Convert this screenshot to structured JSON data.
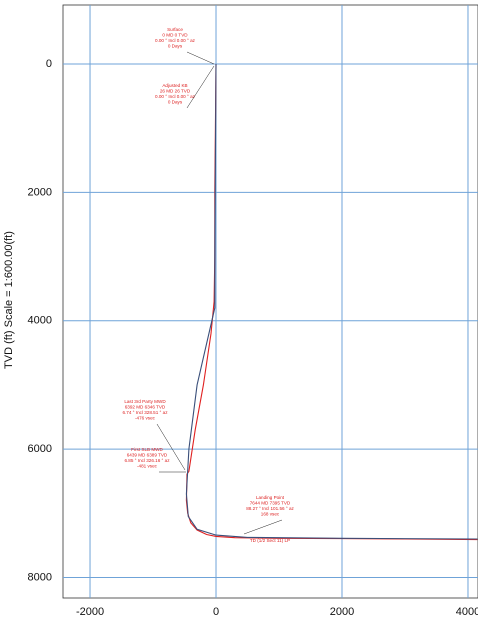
{
  "chart_data": {
    "type": "line",
    "y_label": "TVD (ft) Scale = 1:600.00(ft)",
    "xlim": [
      -2429,
      4159
    ],
    "ylim": [
      8320,
      -920
    ],
    "xticks": [
      -2000,
      0,
      2000,
      4000
    ],
    "yticks": [
      0,
      2000,
      4000,
      6000,
      8000
    ],
    "grid": true,
    "series": [
      {
        "color": "#e02020",
        "x": [
          0,
          0,
          -10,
          -20,
          -20,
          -30,
          -80,
          -200,
          -330,
          -430,
          -460,
          -470,
          -450,
          -400,
          -300,
          -150,
          0,
          300,
          600,
          1000,
          2000,
          3000,
          4150
        ],
        "values": [
          0,
          26,
          1000,
          2000,
          3000,
          3700,
          4200,
          5000,
          5700,
          6346,
          6389,
          6800,
          7000,
          7150,
          7260,
          7330,
          7360,
          7380,
          7385,
          7390,
          7395,
          7400,
          7410
        ]
      },
      {
        "color": "#3a4f7a",
        "x": [
          0,
          -20,
          -20,
          -300,
          -430,
          -470,
          -440,
          -300,
          0,
          500,
          2000,
          4150
        ],
        "values": [
          0,
          3000,
          3800,
          5000,
          6000,
          6700,
          7050,
          7250,
          7340,
          7375,
          7390,
          7400
        ]
      }
    ],
    "annotations": [
      [
        "Surface",
        "0 MD 0 TVD",
        "0.00 ° Incl 0.00 ° az",
        "0 Days"
      ],
      [
        "Adjusted KB",
        "26 MD 26 TVD",
        "0.00 ° Incl 0.00 ° az",
        "0 Days"
      ],
      [
        "Last 3rd Party MWD",
        "6392 MD 6346 TVD",
        "6.74 ° Incl 328.51 ° az",
        "-476 vsec"
      ],
      [
        "First SLB MWD",
        "6439 MD 6389 TVD",
        "6.85 ° Incl 326.16 ° az",
        "-481 vsec"
      ],
      [
        "Landing Point",
        "7644 MD 7395 TVD",
        "88.27 ° Incl 101.56 ° az",
        "168 vsec"
      ],
      [
        "TD (1/2 Sect 11) LP"
      ]
    ]
  }
}
